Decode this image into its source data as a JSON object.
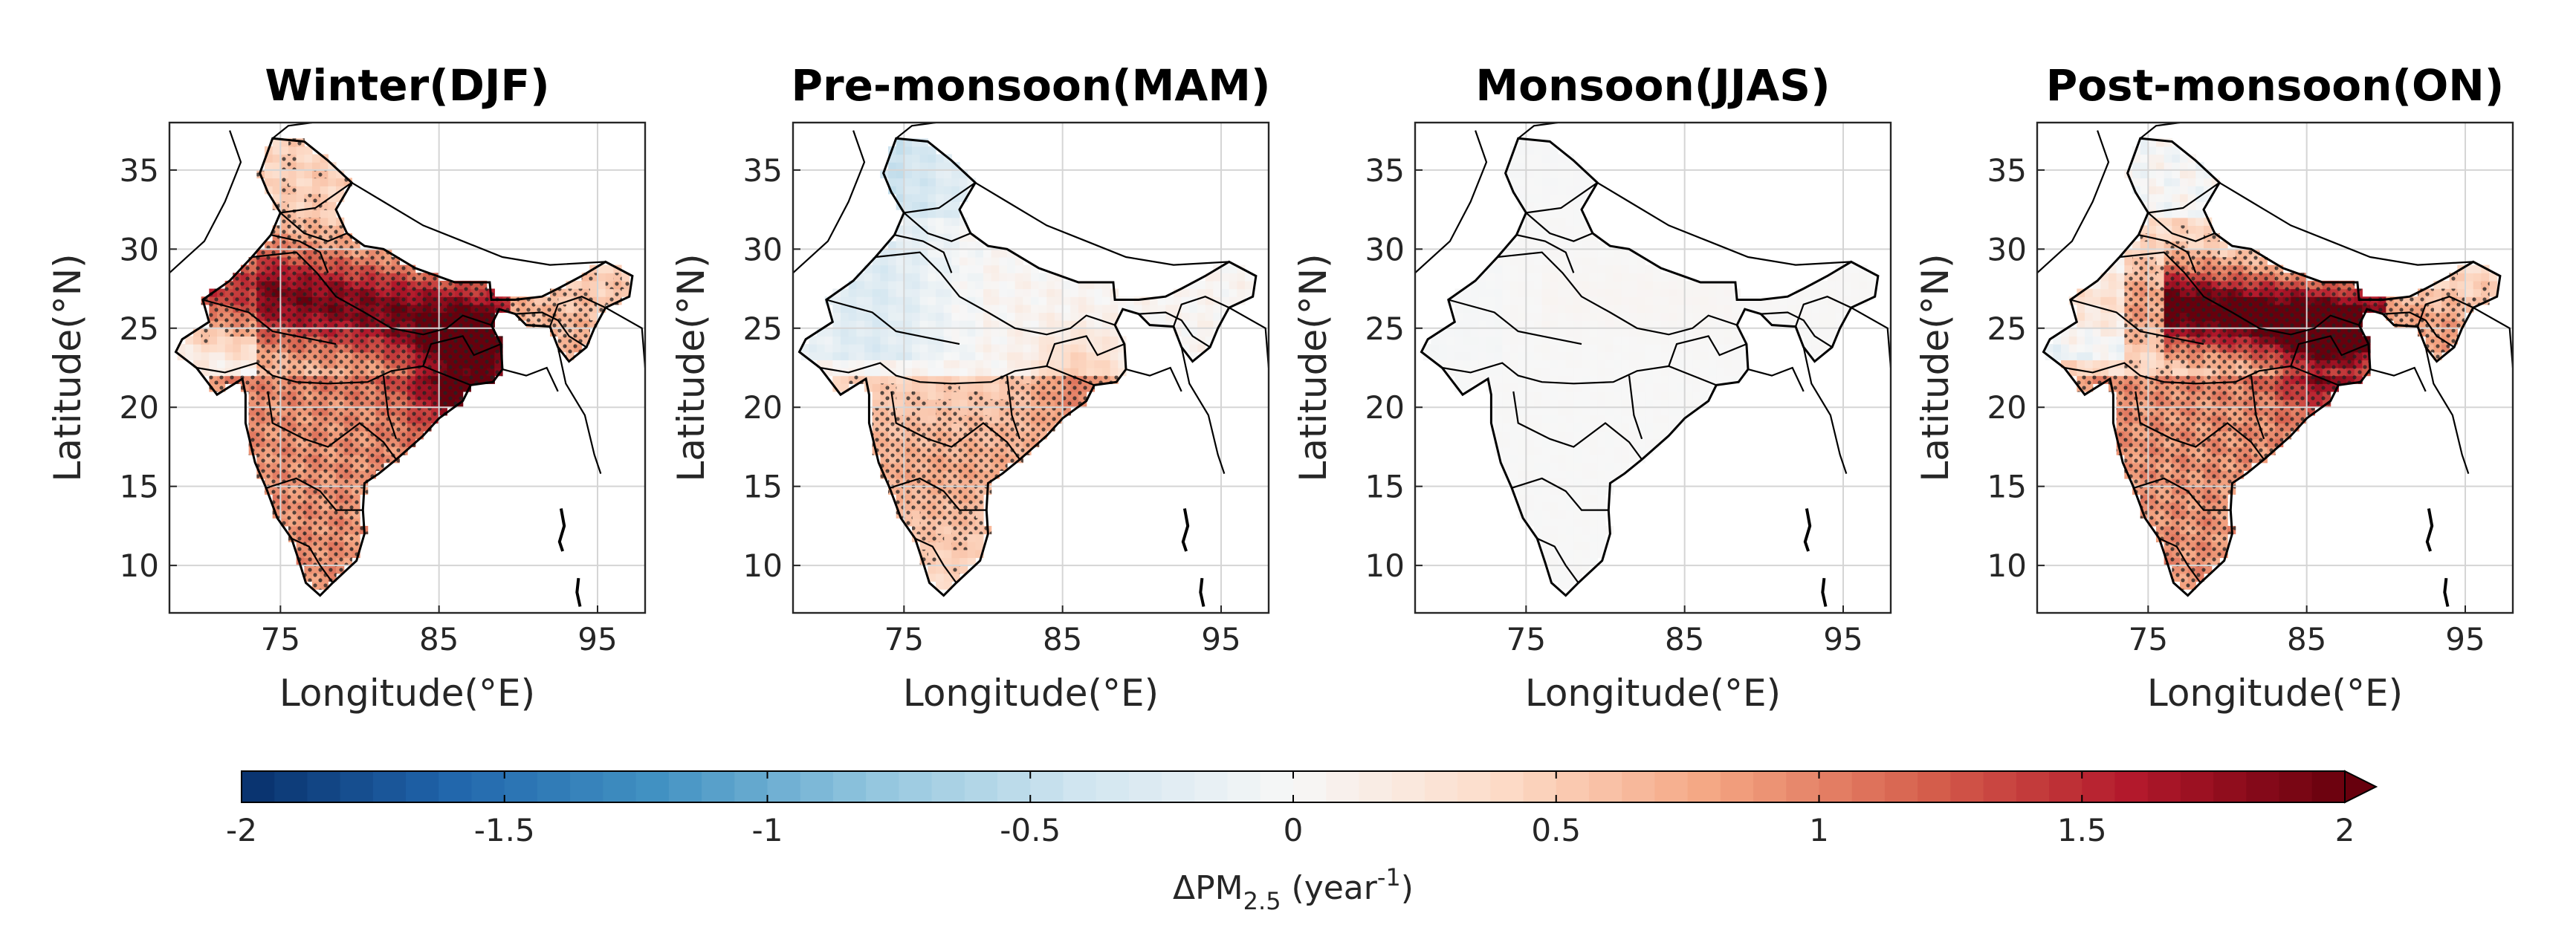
{
  "panels": [
    {
      "title": "Winter(DJF)",
      "intensity": 1.45,
      "pattern": "winter"
    },
    {
      "title": "Pre-monsoon(MAM)",
      "intensity": 0.9,
      "pattern": "premonsoon"
    },
    {
      "title": "Monsoon(JJAS)",
      "intensity": 0.12,
      "pattern": "monsoon"
    },
    {
      "title": "Post-monsoon(ON)",
      "intensity": 1.5,
      "pattern": "postmonsoon"
    }
  ],
  "axes": {
    "xlabel": "Longitude(°E)",
    "ylabel": "Latitude(°N)",
    "xticks": [
      "75",
      "85",
      "95"
    ],
    "yticks": [
      "35",
      "30",
      "25",
      "20",
      "15",
      "10"
    ],
    "xlim": [
      68,
      98
    ],
    "ylim": [
      7,
      38
    ]
  },
  "colorbar": {
    "min": -2,
    "max": 2,
    "ticks": [
      "-2",
      "-1.5",
      "-1",
      "-0.5",
      "0",
      "0.5",
      "1",
      "1.5",
      "2"
    ],
    "label_main": "ΔPM",
    "label_sub": "2.5",
    "label_unit_open": " (year",
    "label_sup": "-1",
    "label_unit_close": ")",
    "colors": {
      "neg": "#08306b",
      "mid": "#ffffff",
      "pos": "#67000d"
    }
  }
}
